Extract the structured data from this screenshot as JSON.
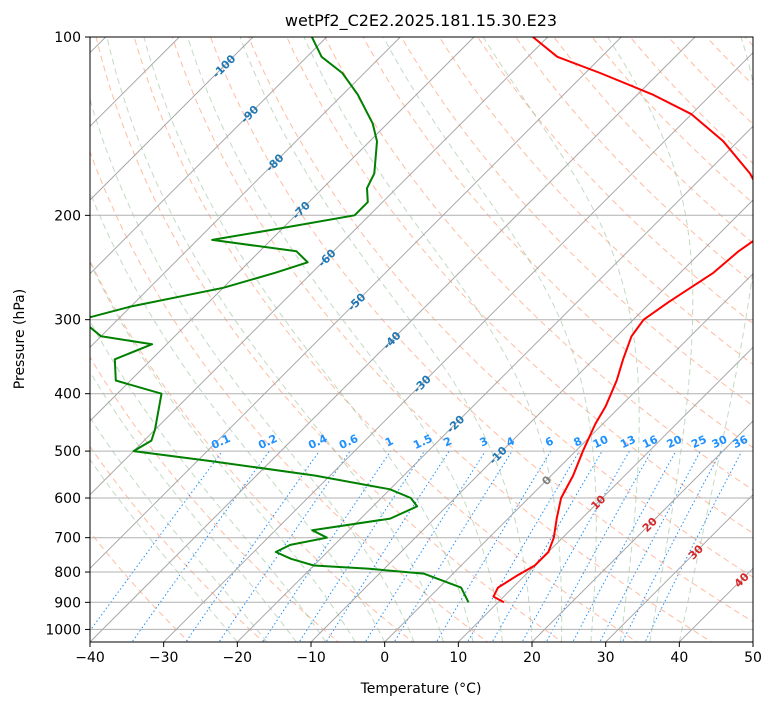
{
  "chart_data": {
    "type": "line",
    "title": "wetPf2_C2E2.2025.181.15.30.E23",
    "xlabel": "Temperature (°C)",
    "ylabel": "Pressure (hPa)",
    "xlim": [
      -40,
      50
    ],
    "ylim": [
      1050,
      100
    ],
    "y_scale": "log",
    "x_ticks": [
      -40,
      -30,
      -20,
      -10,
      0,
      10,
      20,
      30,
      40,
      50
    ],
    "y_ticks": [
      100,
      200,
      300,
      400,
      500,
      600,
      700,
      800,
      900,
      1000
    ],
    "grid": true,
    "skew_deg": 45,
    "isotherm_labels": [
      -100,
      -90,
      -80,
      -70,
      -60,
      -50,
      -40,
      -30,
      -20,
      -10,
      0,
      10,
      20,
      30,
      40
    ],
    "mixing_ratio_labels": [
      "0.1",
      "0.2",
      "0.4",
      "0.6",
      "1",
      "1.5",
      "2",
      "3",
      "4",
      "6",
      "8",
      "10",
      "13",
      "16",
      "20",
      "25",
      "30",
      "36"
    ],
    "colors": {
      "temperature": "#ff0000",
      "dewpoint": "#008000",
      "dry_adiabat": "#ffa07a",
      "moist_adiabat": "#8fbc8f",
      "mixing_ratio": "#1e90ff",
      "isotherm": "#808080",
      "label_blue": "#1f77b4",
      "label_red": "#d62728",
      "label_mix": "#1e90ff"
    },
    "series": [
      {
        "name": "",
        "color": "#ff0000",
        "points": [
          [
            900,
            10.8
          ],
          [
            880,
            8.6
          ],
          [
            850,
            8.0
          ],
          [
            810,
            9.0
          ],
          [
            780,
            10.0
          ],
          [
            740,
            10.0
          ],
          [
            700,
            8.8
          ],
          [
            650,
            6.6
          ],
          [
            600,
            4.4
          ],
          [
            550,
            3.0
          ],
          [
            500,
            1.0
          ],
          [
            450,
            -1.0
          ],
          [
            420,
            -2.0
          ],
          [
            380,
            -4.0
          ],
          [
            350,
            -6.0
          ],
          [
            320,
            -8.0
          ],
          [
            300,
            -8.6
          ],
          [
            280,
            -7.6
          ],
          [
            250,
            -5.5
          ],
          [
            230,
            -5.0
          ],
          [
            215,
            -4.0
          ],
          [
            205,
            -5.0
          ],
          [
            190,
            -8.0
          ],
          [
            170,
            -14.0
          ],
          [
            150,
            -22.0
          ],
          [
            135,
            -30.0
          ],
          [
            125,
            -38.0
          ],
          [
            115,
            -48.0
          ],
          [
            108,
            -56.0
          ],
          [
            100,
            -62.0
          ]
        ]
      },
      {
        "name": "",
        "color": "#008000",
        "points": [
          [
            900,
            6.0
          ],
          [
            850,
            3.0
          ],
          [
            805,
            -4.0
          ],
          [
            790,
            -12.0
          ],
          [
            780,
            -20.0
          ],
          [
            760,
            -24.0
          ],
          [
            740,
            -27.0
          ],
          [
            720,
            -26.0
          ],
          [
            700,
            -22.0
          ],
          [
            680,
            -25.0
          ],
          [
            650,
            -16.0
          ],
          [
            620,
            -14.0
          ],
          [
            600,
            -16.0
          ],
          [
            580,
            -20.0
          ],
          [
            550,
            -32.0
          ],
          [
            520,
            -48.0
          ],
          [
            500,
            -60.0
          ],
          [
            480,
            -59.0
          ],
          [
            460,
            -60.0
          ],
          [
            400,
            -64.0
          ],
          [
            380,
            -72.0
          ],
          [
            350,
            -75.0
          ],
          [
            330,
            -72.0
          ],
          [
            320,
            -80.0
          ],
          [
            300,
            -85.0
          ],
          [
            285,
            -80.0
          ],
          [
            265,
            -70.0
          ],
          [
            250,
            -65.0
          ],
          [
            240,
            -62.0
          ],
          [
            230,
            -65.0
          ],
          [
            220,
            -78.0
          ],
          [
            210,
            -70.0
          ],
          [
            200,
            -62.0
          ],
          [
            190,
            -62.0
          ],
          [
            180,
            -64.0
          ],
          [
            170,
            -65.0
          ],
          [
            150,
            -69.0
          ],
          [
            140,
            -72.0
          ],
          [
            125,
            -78.0
          ],
          [
            115,
            -83.0
          ],
          [
            108,
            -88.0
          ],
          [
            100,
            -92.0
          ]
        ]
      }
    ]
  }
}
